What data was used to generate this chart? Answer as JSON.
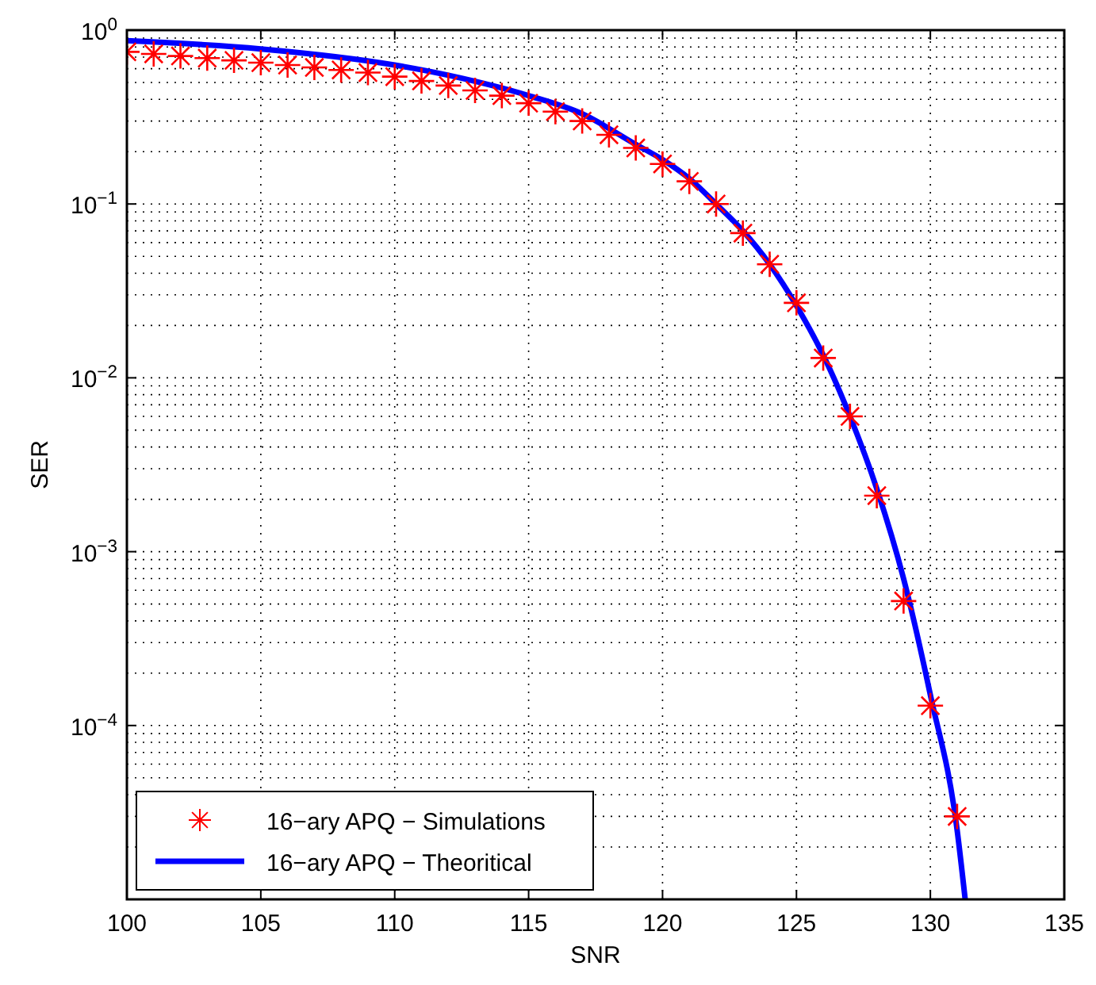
{
  "chart_data": {
    "type": "line",
    "xlabel": "SNR",
    "ylabel": "SER",
    "log": "y",
    "grid": true,
    "legend": "bottom left",
    "xlim": [
      100,
      135
    ],
    "xticks": [
      100,
      105,
      110,
      115,
      120,
      125,
      130,
      135
    ],
    "ylim": [
      1e-05,
      1
    ],
    "yticks": [
      {
        "value": 1e-05,
        "label": null
      },
      {
        "value": 0.0001,
        "label": "10$^{−4}$"
      },
      {
        "value": 0.001,
        "label": "10$^{−3}$"
      },
      {
        "value": 0.01,
        "label": "10$^{−2}$"
      },
      {
        "value": 0.1,
        "label": "10$^{−1}$"
      },
      {
        "value": 1,
        "label": "10$^{0}$"
      }
    ],
    "series": [
      {
        "name": "16−ary APQ − Simulations",
        "type": "scatter",
        "marker": "cross",
        "color": "#ff0000",
        "x": [
          100,
          101,
          102,
          103,
          104,
          105,
          106,
          107,
          108,
          109,
          110,
          111,
          112,
          113,
          114,
          115,
          116,
          117,
          118,
          119,
          120,
          121,
          122,
          123,
          124,
          125,
          126,
          127,
          128,
          129,
          130,
          131
        ],
        "values": [
          0.75,
          0.73,
          0.71,
          0.69,
          0.67,
          0.65,
          0.63,
          0.61,
          0.59,
          0.57,
          0.54,
          0.51,
          0.48,
          0.45,
          0.42,
          0.38,
          0.34,
          0.3,
          0.25,
          0.21,
          0.17,
          0.135,
          0.1,
          0.068,
          0.045,
          0.027,
          0.013,
          0.006,
          0.0021,
          0.00052,
          0.00013,
          3e-05
        ]
      },
      {
        "name": "16−ary APQ − Theoritical",
        "line_style": "solid",
        "color": "#0000ff",
        "x": [
          100,
          105,
          110,
          112,
          115,
          117,
          119,
          120,
          121,
          122,
          123,
          124,
          125,
          126,
          127,
          128,
          129,
          130,
          131,
          131.3
        ],
        "values": [
          0.87,
          0.78,
          0.63,
          0.55,
          0.42,
          0.33,
          0.22,
          0.18,
          0.14,
          0.1,
          0.07,
          0.045,
          0.026,
          0.0135,
          0.006,
          0.0023,
          0.0007,
          0.00015,
          2.5e-05,
          1e-05
        ]
      }
    ]
  }
}
